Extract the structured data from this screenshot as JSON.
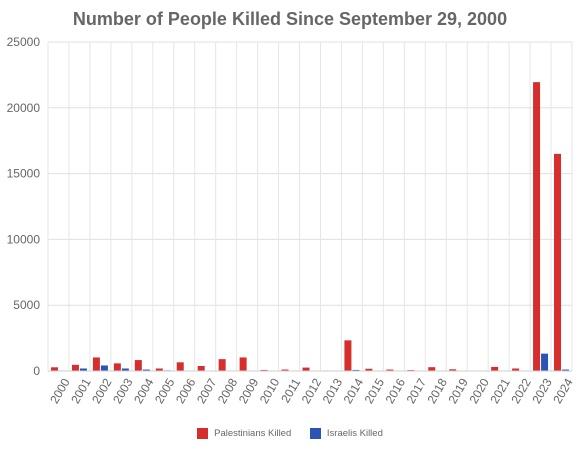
{
  "chart_data": {
    "type": "bar",
    "title": "Number of People Killed Since September 29, 2000",
    "xlabel": "",
    "ylabel": "",
    "ylim": [
      0,
      25000
    ],
    "yticks": [
      0,
      5000,
      10000,
      15000,
      20000,
      25000
    ],
    "categories": [
      "2000",
      "2001",
      "2002",
      "2003",
      "2004",
      "2005",
      "2006",
      "2007",
      "2008",
      "2009",
      "2010",
      "2011",
      "2012",
      "2013",
      "2014",
      "2015",
      "2016",
      "2017",
      "2018",
      "2019",
      "2020",
      "2021",
      "2022",
      "2023",
      "2024"
    ],
    "series": [
      {
        "name": "Palestinians Killed",
        "color": "#d62d2d",
        "values": [
          280,
          470,
          1030,
          580,
          830,
          190,
          660,
          380,
          900,
          1030,
          80,
          110,
          260,
          40,
          2330,
          170,
          110,
          70,
          290,
          130,
          30,
          310,
          190,
          21950,
          16500
        ]
      },
      {
        "name": "Israelis Killed",
        "color": "#2b54b5",
        "values": [
          40,
          190,
          420,
          190,
          110,
          50,
          30,
          10,
          30,
          10,
          10,
          20,
          10,
          10,
          80,
          30,
          20,
          20,
          20,
          10,
          10,
          10,
          30,
          1320,
          110
        ]
      }
    ],
    "grid": true,
    "legend_position": "bottom"
  }
}
